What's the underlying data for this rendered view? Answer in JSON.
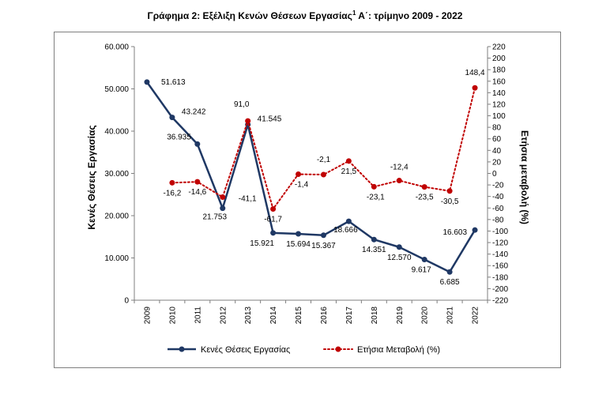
{
  "title": {
    "main": "Γράφημα 2: Εξέλιξη Κενών Θέσεων Εργασίας",
    "sup": "1",
    "rest": " Α΄: τρίμηνο 2009 - 2022"
  },
  "chart_data": {
    "type": "line",
    "categories": [
      "2009",
      "2010",
      "2011",
      "2012",
      "2013",
      "2014",
      "2015",
      "2016",
      "2017",
      "2018",
      "2019",
      "2020",
      "2021",
      "2022"
    ],
    "series": [
      {
        "name": "Κενές Θέσεις Εργασίας",
        "axis": "left",
        "color": "#1f3864",
        "style": "solid",
        "values": [
          51613,
          43242,
          36935,
          21753,
          41545,
          15921,
          15694,
          15367,
          18666,
          14351,
          12570,
          9617,
          6685,
          16603
        ],
        "labels": [
          "51.613",
          "43.242",
          "36.935",
          "21.753",
          "41.545",
          "15.921",
          "15.694",
          "15.367",
          "18.666",
          "14.351",
          "12.570",
          "9.617",
          "6.685",
          "16.603"
        ]
      },
      {
        "name": "Ετήσια Μεταβολή (%)",
        "axis": "right",
        "color": "#c00000",
        "style": "dotted",
        "values": [
          null,
          -16.2,
          -14.6,
          -41.1,
          91.0,
          -61.7,
          -1.4,
          -2.1,
          21.5,
          -23.1,
          -12.4,
          -23.5,
          -30.5,
          148.4
        ],
        "labels": [
          "",
          "-16,2",
          "-14,6",
          "-41,1",
          "91,0",
          "-61,7",
          "-1,4",
          "-2,1",
          "21,5",
          "-23,1",
          "-12,4",
          "-23,5",
          "-30,5",
          "148,4"
        ]
      }
    ],
    "ylabel_left": "Κενές Θέσεις Εργασίας",
    "ylabel_right": "Ετήσια μεταβολή (%)",
    "ylim_left": [
      0,
      60000
    ],
    "ylim_right": [
      -220,
      220
    ],
    "yticks_left": [
      "0",
      "10.000",
      "20.000",
      "30.000",
      "40.000",
      "50.000",
      "60.000"
    ],
    "yticks_right": [
      "-220",
      "-200",
      "-180",
      "-160",
      "-140",
      "-120",
      "-100",
      "-80",
      "-60",
      "-40",
      "-20",
      "0",
      "20",
      "40",
      "60",
      "80",
      "100",
      "120",
      "140",
      "160",
      "180",
      "200",
      "220"
    ],
    "grid": false,
    "legend_position": "bottom"
  }
}
